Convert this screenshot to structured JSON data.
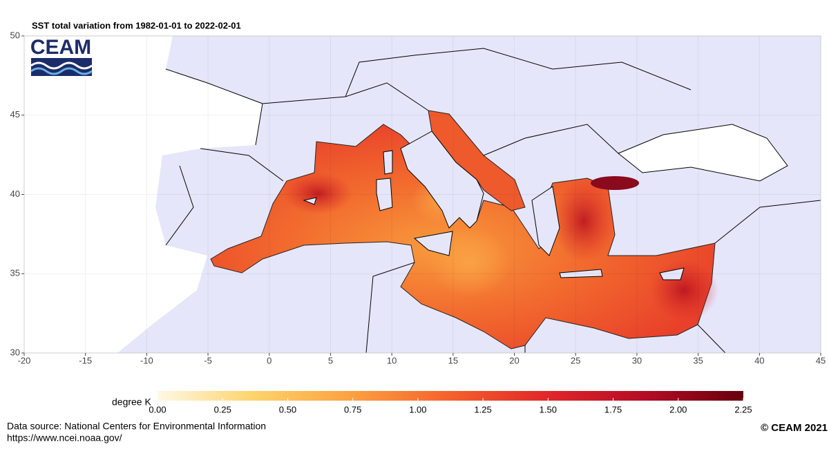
{
  "map": {
    "title": "SST total variation from  1982-01-01 to 2022-02-01",
    "logo": "CEAM",
    "xlim": [
      -20,
      45
    ],
    "xticks": [
      -20,
      -15,
      -10,
      -5,
      0,
      5,
      10,
      15,
      20,
      25,
      30,
      35,
      40,
      45
    ],
    "ylim": [
      30,
      50
    ],
    "yticks": [
      30,
      35,
      40,
      45,
      50
    ],
    "colorbar": {
      "label": "degree K",
      "lim": [
        0,
        2.25
      ],
      "colors": [
        "#fff8e6",
        "#fdd36a",
        "#fca040",
        "#f4612d",
        "#e0262a",
        "#b30d26",
        "#67000d"
      ],
      "ticks": [
        {
          "value": 0,
          "label": "0.00"
        },
        {
          "value": 0.25,
          "label": "0.25"
        },
        {
          "value": 0.5,
          "label": "0.50"
        },
        {
          "value": 0.75,
          "label": "0.75"
        },
        {
          "value": 1,
          "label": "1.00"
        },
        {
          "value": 1.25,
          "label": "1.25"
        },
        {
          "value": 1.5,
          "label": "1.50"
        },
        {
          "value": 1.75,
          "label": "1.75"
        },
        {
          "value": 2,
          "label": "2.00"
        },
        {
          "value": 2.25,
          "label": "2.25"
        }
      ]
    },
    "source": [
      "Data source: National Centers for Environmental Information",
      "https://www.ncei.noaa.gov/"
    ],
    "copyright": "© CEAM 2021"
  }
}
